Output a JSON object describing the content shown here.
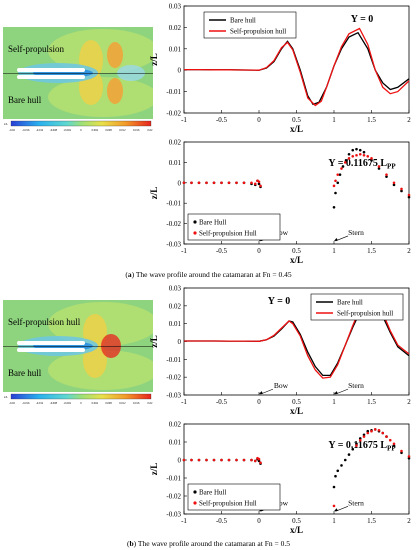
{
  "figure_a": {
    "contour": {
      "label_top": "Self-propulsion",
      "label_bottom": "Bare hull",
      "colorbar_ticks": [
        "-0.02",
        "-0.016",
        "-0.012",
        "-0.008",
        "-0.004",
        "0",
        "0.004",
        "0.008",
        "0.012",
        "0.016",
        "0.02"
      ],
      "colorbar_unit": "z/L"
    },
    "caption_letter": "a",
    "caption_text": "The wave profile around the catamaran at Fn = 0.45"
  },
  "figure_b": {
    "contour": {
      "label_top": "Self-propulsion hull",
      "label_bottom": "Bare hull",
      "colorbar_ticks": [
        "-0.02",
        "-0.016",
        "-0.012",
        "-0.008",
        "-0.004",
        "0",
        "0.004",
        "0.008",
        "0.012",
        "0.016",
        "0.02"
      ],
      "colorbar_unit": "z/L"
    },
    "caption_letter": "b",
    "caption_text": "The wave profile around the catamaran at Fn = 0.5"
  },
  "colors": {
    "bare": "#000000",
    "self": "#ee1111"
  },
  "chart_data": [
    {
      "id": "a1",
      "type": "line",
      "title": "Y = 0",
      "title_sub": "",
      "xlabel": "x/L",
      "ylabel": "z/L",
      "xlim": [
        -1,
        2
      ],
      "ylim": [
        -0.02,
        0.03
      ],
      "xticks": [
        -1,
        -0.5,
        0,
        0.5,
        1,
        1.5,
        2
      ],
      "yticks": [
        -0.02,
        -0.01,
        0,
        0.01,
        0.02,
        0.03
      ],
      "legend": [
        "Bare hull",
        "Self-propulsion hull"
      ],
      "legend_position": "top-left",
      "annotations": [],
      "series": [
        {
          "name": "Bare hull",
          "style": "line",
          "x": [
            -1,
            -0.8,
            -0.6,
            -0.4,
            -0.2,
            0,
            0.1,
            0.2,
            0.3,
            0.38,
            0.45,
            0.55,
            0.65,
            0.72,
            0.8,
            0.9,
            1.0,
            1.1,
            1.2,
            1.32,
            1.45,
            1.55,
            1.65,
            1.75,
            1.85,
            2.0
          ],
          "y": [
            0.0003,
            0.0003,
            0.0002,
            0.0002,
            0.0001,
            0,
            0.001,
            0.004,
            0.01,
            0.0135,
            0.01,
            0.0,
            -0.012,
            -0.016,
            -0.015,
            -0.008,
            0.002,
            0.01,
            0.0155,
            0.0175,
            0.01,
            0.0,
            -0.006,
            -0.009,
            -0.008,
            -0.004
          ]
        },
        {
          "name": "Self-propulsion hull",
          "style": "line",
          "x": [
            -1,
            -0.8,
            -0.6,
            -0.4,
            -0.2,
            0,
            0.1,
            0.2,
            0.3,
            0.38,
            0.45,
            0.55,
            0.65,
            0.75,
            0.83,
            0.9,
            1.0,
            1.1,
            1.2,
            1.34,
            1.45,
            1.55,
            1.65,
            1.75,
            1.85,
            2.0
          ],
          "y": [
            0.0003,
            0.0003,
            0.0002,
            0.0002,
            0.0001,
            0,
            0.0012,
            0.0045,
            0.0105,
            0.013,
            0.0095,
            -0.001,
            -0.013,
            -0.0165,
            -0.0145,
            -0.008,
            0.002,
            0.011,
            0.017,
            0.0195,
            0.012,
            0.0,
            -0.008,
            -0.011,
            -0.01,
            -0.005
          ]
        }
      ]
    },
    {
      "id": "a2",
      "type": "scatter",
      "title": "Y = 0.11675 L",
      "title_sub": "PP",
      "xlabel": "x/L",
      "ylabel": "z/L",
      "xlim": [
        -1,
        2
      ],
      "ylim": [
        -0.03,
        0.02
      ],
      "xticks": [
        -1,
        -0.5,
        0,
        0.5,
        1,
        1.5,
        2
      ],
      "yticks": [
        -0.03,
        -0.02,
        -0.01,
        0,
        0.01,
        0.02
      ],
      "legend": [
        "Bare Hull",
        "Self-propulsion Hull"
      ],
      "legend_position": "bottom-left",
      "annotations": [
        {
          "text": "Bow",
          "x": 0,
          "y": -0.0285
        },
        {
          "text": "Stern",
          "x": 1,
          "y": -0.0285
        }
      ],
      "series": [
        {
          "name": "Bare Hull",
          "style": "markers",
          "x": [
            -1,
            -0.9,
            -0.8,
            -0.7,
            -0.6,
            -0.5,
            -0.4,
            -0.3,
            -0.2,
            -0.1,
            -0.05,
            -0.02,
            0,
            0.02,
            1.0,
            1.02,
            1.05,
            1.08,
            1.12,
            1.16,
            1.2,
            1.25,
            1.3,
            1.35,
            1.4,
            1.5,
            1.6,
            1.7,
            1.8,
            1.9,
            2.0
          ],
          "y": [
            0,
            0,
            0,
            0,
            0,
            0,
            0,
            0,
            0,
            -0.0005,
            -0.001,
            0.001,
            -0.0005,
            -0.002,
            -0.012,
            -0.005,
            0.0,
            0.004,
            0.008,
            0.011,
            0.014,
            0.016,
            0.0165,
            0.016,
            0.015,
            0.011,
            0.007,
            0.003,
            -0.001,
            -0.004,
            -0.007
          ]
        },
        {
          "name": "Self-propulsion Hull",
          "style": "markers",
          "x": [
            -1,
            -0.9,
            -0.8,
            -0.7,
            -0.6,
            -0.5,
            -0.4,
            -0.3,
            -0.2,
            -0.1,
            -0.05,
            -0.02,
            0,
            0.02,
            1.0,
            1.02,
            1.05,
            1.1,
            1.15,
            1.2,
            1.25,
            1.3,
            1.35,
            1.4,
            1.45,
            1.5,
            1.6,
            1.7,
            1.8,
            1.9,
            2.0
          ],
          "y": [
            0,
            0,
            0,
            0,
            0,
            0,
            0,
            0,
            0,
            0,
            -0.0005,
            0.001,
            0.0005,
            -0.0015,
            -0.0015,
            0.001,
            0.004,
            0.007,
            0.01,
            0.012,
            0.013,
            0.0135,
            0.014,
            0.0135,
            0.013,
            0.012,
            0.008,
            0.004,
            0.0,
            -0.003,
            -0.006
          ]
        }
      ]
    },
    {
      "id": "b1",
      "type": "line",
      "title": "Y = 0",
      "title_sub": "",
      "xlabel": "x/L",
      "ylabel": "z/L",
      "xlim": [
        -1,
        2
      ],
      "ylim": [
        -0.03,
        0.03
      ],
      "xticks": [
        -1,
        -0.5,
        0,
        0.5,
        1,
        1.5,
        2
      ],
      "yticks": [
        -0.03,
        -0.02,
        -0.01,
        0,
        0.01,
        0.02,
        0.03
      ],
      "legend": [
        "Bare hull",
        "Self-propulsion hull"
      ],
      "legend_position": "top-right",
      "annotations": [
        {
          "text": "Bow",
          "x": 0,
          "y": -0.0295
        },
        {
          "text": "Stern",
          "x": 1,
          "y": -0.0295
        }
      ],
      "series": [
        {
          "name": "Bare hull",
          "style": "line",
          "x": [
            -1,
            -0.8,
            -0.6,
            -0.4,
            -0.2,
            0,
            0.1,
            0.2,
            0.3,
            0.4,
            0.45,
            0.55,
            0.65,
            0.75,
            0.85,
            0.95,
            1.05,
            1.15,
            1.25,
            1.35,
            1.45,
            1.55,
            1.65,
            1.75,
            1.85,
            2.0
          ],
          "y": [
            0.0003,
            0.0003,
            0.0003,
            0.0002,
            0.0002,
            0.0001,
            0.001,
            0.003,
            0.007,
            0.0115,
            0.011,
            0.004,
            -0.006,
            -0.014,
            -0.019,
            -0.019,
            -0.012,
            -0.002,
            0.008,
            0.017,
            0.022,
            0.021,
            0.014,
            0.005,
            -0.003,
            -0.008
          ]
        },
        {
          "name": "Self-propulsion hull",
          "style": "line",
          "x": [
            -1,
            -0.8,
            -0.6,
            -0.4,
            -0.2,
            0,
            0.1,
            0.2,
            0.3,
            0.4,
            0.45,
            0.55,
            0.65,
            0.75,
            0.85,
            0.95,
            1.05,
            1.15,
            1.25,
            1.35,
            1.45,
            1.55,
            1.65,
            1.75,
            1.85,
            2.0
          ],
          "y": [
            0.0003,
            0.0003,
            0.0003,
            0.0002,
            0.0002,
            0.0001,
            0.001,
            0.0035,
            0.0075,
            0.0115,
            0.01,
            0.003,
            -0.008,
            -0.016,
            -0.0205,
            -0.02,
            -0.013,
            -0.002,
            0.009,
            0.019,
            0.025,
            0.024,
            0.016,
            0.006,
            -0.002,
            -0.007
          ]
        }
      ]
    },
    {
      "id": "b2",
      "type": "scatter",
      "title": "Y = 0.11675 L",
      "title_sub": "PP",
      "xlabel": "x/L",
      "ylabel": "z/L",
      "xlim": [
        -1,
        2
      ],
      "ylim": [
        -0.03,
        0.02
      ],
      "xticks": [
        -1,
        -0.5,
        0,
        0.5,
        1,
        1.5,
        2
      ],
      "yticks": [
        -0.03,
        -0.02,
        -0.01,
        0,
        0.01,
        0.02
      ],
      "legend": [
        "Bare Hull",
        "Self-propulsion Hull"
      ],
      "legend_position": "bottom-left",
      "annotations": [
        {
          "text": "Bow",
          "x": 0,
          "y": -0.0285
        },
        {
          "text": "Stern",
          "x": 1,
          "y": -0.0285
        }
      ],
      "series": [
        {
          "name": "Bare Hull",
          "style": "markers",
          "x": [
            -1,
            -0.9,
            -0.8,
            -0.7,
            -0.6,
            -0.5,
            -0.4,
            -0.3,
            -0.2,
            -0.1,
            -0.05,
            -0.02,
            0,
            0.02,
            1.0,
            1.02,
            1.05,
            1.1,
            1.15,
            1.2,
            1.25,
            1.3,
            1.35,
            1.4,
            1.45,
            1.5,
            1.55,
            1.6,
            1.65,
            1.7,
            1.8,
            1.9,
            2.0
          ],
          "y": [
            0,
            0,
            0,
            0,
            0,
            0,
            0,
            0,
            0,
            0,
            -0.0005,
            0.0005,
            -0.0005,
            -0.002,
            -0.015,
            -0.009,
            -0.006,
            -0.003,
            0.0,
            0.003,
            0.006,
            0.009,
            0.012,
            0.014,
            0.016,
            0.0165,
            0.017,
            0.016,
            0.015,
            0.013,
            0.008,
            0.004,
            0.001
          ]
        },
        {
          "name": "Self-propulsion Hull",
          "style": "markers",
          "x": [
            -1,
            -0.9,
            -0.8,
            -0.7,
            -0.6,
            -0.5,
            -0.4,
            -0.3,
            -0.2,
            -0.1,
            -0.05,
            -0.02,
            0,
            0.02,
            1.0,
            1.3,
            1.35,
            1.4,
            1.45,
            1.5,
            1.55,
            1.6,
            1.65,
            1.7,
            1.75,
            1.8,
            1.9,
            2.0
          ],
          "y": [
            0,
            0,
            0,
            0,
            0,
            0,
            0,
            0,
            0,
            0,
            -0.0005,
            0.001,
            0.0005,
            -0.0015,
            -0.0255,
            0.008,
            0.011,
            0.013,
            0.015,
            0.016,
            0.017,
            0.0165,
            0.015,
            0.013,
            0.011,
            0.009,
            0.005,
            0.002
          ]
        }
      ]
    }
  ]
}
